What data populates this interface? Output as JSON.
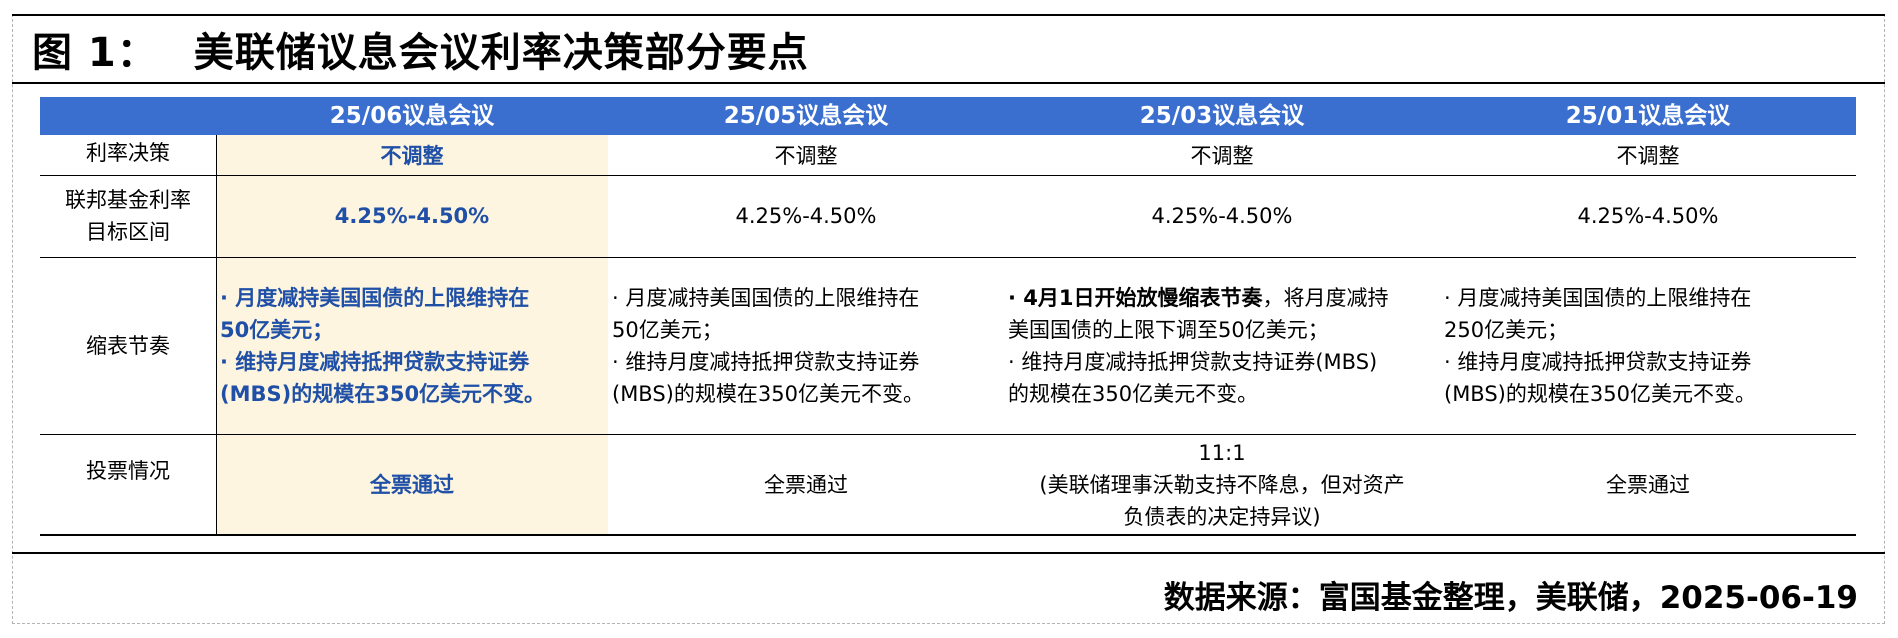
{
  "figure": {
    "number": "图  1：",
    "title": "美联储议息会议利率决策部分要点"
  },
  "table": {
    "headers": [
      "",
      "25/06议息会议",
      "25/05议息会议",
      "25/03议息会议",
      "25/01议息会议"
    ],
    "rows": {
      "decision": {
        "label": "利率决策",
        "values": [
          "不调整",
          "不调整",
          "不调整",
          "不调整"
        ]
      },
      "target": {
        "label_line1": "联邦基金利率",
        "label_line2": "目标区间",
        "values": [
          "4.25%-4.50%",
          "4.25%-4.50%",
          "4.25%-4.50%",
          "4.25%-4.50%"
        ]
      },
      "qt": {
        "label": "缩表节奏",
        "c1": {
          "l1": "· 月度减持美国国债的上限维持在",
          "l2": "50亿美元；",
          "l3": "· 维持月度减持抵押贷款支持证券",
          "l4": "(MBS)的规模在350亿美元不变。"
        },
        "c2": {
          "l1": " · 月度减持美国国债的上限维持在",
          "l2": "50亿美元；",
          "l3": " · 维持月度减持抵押贷款支持证券",
          "l4": "(MBS)的规模在350亿美元不变。"
        },
        "c3": {
          "l1_bold": " · 4月1日开始放慢缩表节奏",
          "l1_rest": "，将月度减持",
          "l2": "美国国债的上限下调至50亿美元；",
          "l3": " · 维持月度减持抵押贷款支持证券(MBS)",
          "l4": "的规模在350亿美元不变。"
        },
        "c4": {
          "l1": " · 月度减持美国国债的上限维持在",
          "l2": "250亿美元；",
          "l3": " · 维持月度减持抵押贷款支持证券",
          "l4": "(MBS)的规模在350亿美元不变。"
        }
      },
      "vote": {
        "label": "投票情况",
        "c1": "全票通过",
        "c2": "全票通过",
        "c3_l1": "11:1",
        "c3_l2": "(美联储理事沃勒支持不降息，但对资产",
        "c3_l3": "负债表的决定持异议)",
        "c4": "全票通过"
      }
    }
  },
  "source": "数据来源：富国基金整理，美联储，2025-06-19",
  "colors": {
    "header_bg": "#3a6fcf",
    "highlight_bg": "#fdf5df",
    "highlight_text": "#1f4fa6"
  }
}
